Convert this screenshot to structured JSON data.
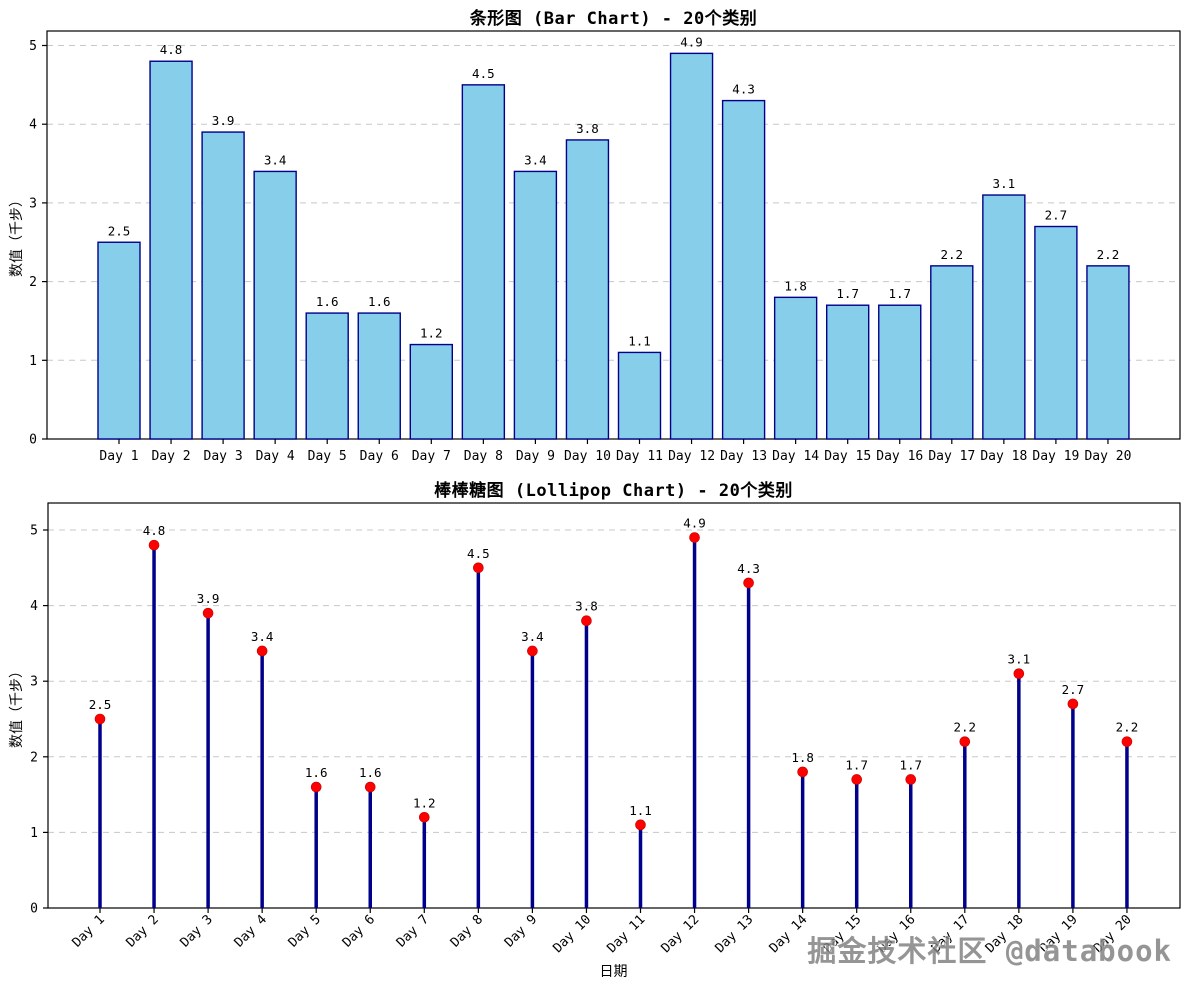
{
  "watermark": "掘金技术社区 @databook",
  "chart_data": [
    {
      "type": "bar",
      "title": "条形图 (Bar Chart) - 20个类别",
      "categories": [
        "Day 1",
        "Day 2",
        "Day 3",
        "Day 4",
        "Day 5",
        "Day 6",
        "Day 7",
        "Day 8",
        "Day 9",
        "Day 10",
        "Day 11",
        "Day 12",
        "Day 13",
        "Day 14",
        "Day 15",
        "Day 16",
        "Day 17",
        "Day 18",
        "Day 19",
        "Day 20"
      ],
      "values": [
        2.5,
        4.8,
        3.9,
        3.4,
        1.6,
        1.6,
        1.2,
        4.5,
        3.4,
        3.8,
        1.1,
        4.9,
        4.3,
        1.8,
        1.7,
        1.7,
        2.2,
        3.1,
        2.7,
        2.2
      ],
      "xlabel": "",
      "ylabel": "数值（千步）",
      "ylim": [
        0,
        5.18
      ],
      "yticks": [
        0,
        1,
        2,
        3,
        4,
        5
      ],
      "grid": true,
      "grid_style": "dashed",
      "value_labels": true,
      "bar_fill": "#87CEEB",
      "bar_edge": "#00008B",
      "xtick_rotation": 0
    },
    {
      "type": "lollipop",
      "title": "棒棒糖图 (Lollipop Chart) - 20个类别",
      "categories": [
        "Day 1",
        "Day 2",
        "Day 3",
        "Day 4",
        "Day 5",
        "Day 6",
        "Day 7",
        "Day 8",
        "Day 9",
        "Day 10",
        "Day 11",
        "Day 12",
        "Day 13",
        "Day 14",
        "Day 15",
        "Day 16",
        "Day 17",
        "Day 18",
        "Day 19",
        "Day 20"
      ],
      "values": [
        2.5,
        4.8,
        3.9,
        3.4,
        1.6,
        1.6,
        1.2,
        4.5,
        3.4,
        3.8,
        1.1,
        4.9,
        4.3,
        1.8,
        1.7,
        1.7,
        2.2,
        3.1,
        2.7,
        2.2
      ],
      "xlabel": "日期",
      "ylabel": "数值（千步）",
      "ylim": [
        0,
        5.36
      ],
      "yticks": [
        0,
        1,
        2,
        3,
        4,
        5
      ],
      "grid": true,
      "grid_style": "dashed",
      "value_labels": true,
      "stem_color": "#00008B",
      "marker_color": "#FF0000",
      "xtick_rotation": 45
    }
  ]
}
